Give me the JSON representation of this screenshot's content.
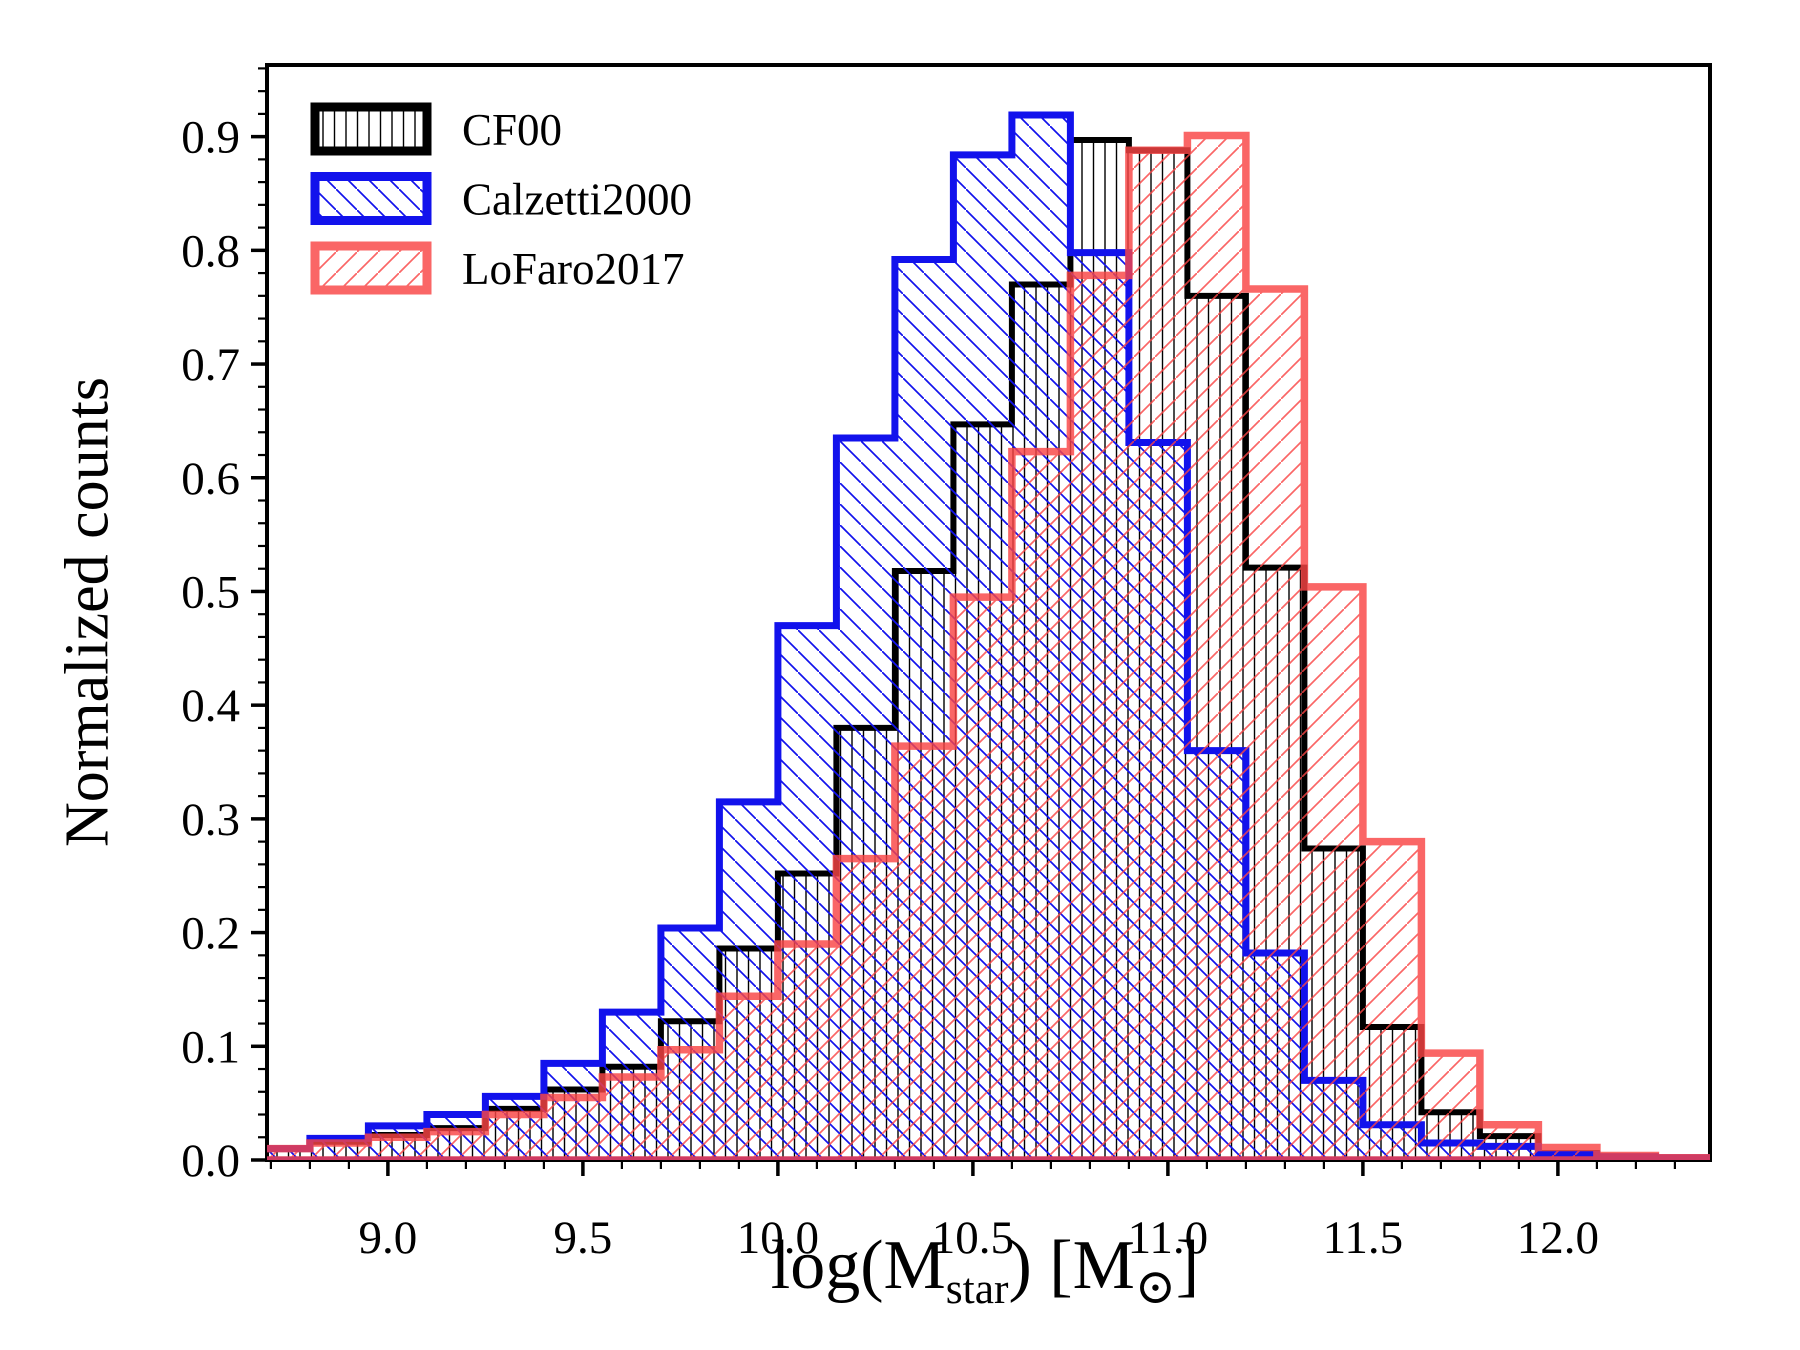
{
  "chart_data": {
    "type": "histogram-step",
    "title": "",
    "ylabel": "Normalized counts",
    "xlabel": {
      "p1": "log(M",
      "s1": "star",
      "p2": ") [M",
      "s2": "⊙",
      "p3": "]"
    },
    "xlim": [
      8.69,
      12.39
    ],
    "ylim": [
      0,
      0.963
    ],
    "grid": false,
    "legend_position": "upper-left",
    "xticks": [
      9.0,
      9.5,
      10.0,
      10.5,
      11.0,
      11.5,
      12.0
    ],
    "xtick_labels": [
      "9.0",
      "9.5",
      "10.0",
      "10.5",
      "11.0",
      "11.5",
      "12.0"
    ],
    "yticks": [
      0.0,
      0.1,
      0.2,
      0.3,
      0.4,
      0.5,
      0.6,
      0.7,
      0.8,
      0.9
    ],
    "ytick_labels": [
      "0.0",
      "0.1",
      "0.2",
      "0.3",
      "0.4",
      "0.5",
      "0.6",
      "0.7",
      "0.8",
      "0.9"
    ],
    "minor_x_step": 0.1,
    "minor_y_step": 0.02,
    "bin_edges": [
      8.65,
      8.8,
      8.95,
      9.1,
      9.25,
      9.4,
      9.55,
      9.7,
      9.85,
      10.0,
      10.15,
      10.3,
      10.45,
      10.6,
      10.75,
      10.9,
      11.05,
      11.2,
      11.35,
      11.5,
      11.65,
      11.8,
      11.95,
      12.1,
      12.25,
      12.4
    ],
    "series": [
      {
        "name": "CF00",
        "color": "#000000",
        "hatch": "|",
        "opacity": 1,
        "values": [
          0.01,
          0.016,
          0.022,
          0.028,
          0.045,
          0.062,
          0.082,
          0.122,
          0.186,
          0.252,
          0.38,
          0.518,
          0.647,
          0.77,
          0.897,
          0.888,
          0.76,
          0.521,
          0.274,
          0.117,
          0.042,
          0.021,
          0.006,
          0.003,
          0.002
        ]
      },
      {
        "name": "Calzetti2000",
        "color": "#1212ec",
        "hatch": "\\",
        "opacity": 1,
        "values": [
          0.01,
          0.019,
          0.03,
          0.04,
          0.056,
          0.085,
          0.13,
          0.204,
          0.315,
          0.47,
          0.635,
          0.792,
          0.884,
          0.919,
          0.798,
          0.631,
          0.36,
          0.182,
          0.07,
          0.031,
          0.015,
          0.012,
          0.005,
          0.003,
          0.002
        ]
      },
      {
        "name": "LoFaro2017",
        "color": "#f94545",
        "hatch": "/",
        "opacity": 0.82,
        "values": [
          0.01,
          0.015,
          0.02,
          0.025,
          0.04,
          0.055,
          0.073,
          0.097,
          0.144,
          0.19,
          0.265,
          0.364,
          0.495,
          0.623,
          0.778,
          0.888,
          0.901,
          0.766,
          0.504,
          0.28,
          0.094,
          0.031,
          0.011,
          0.004,
          0.002
        ]
      }
    ]
  }
}
